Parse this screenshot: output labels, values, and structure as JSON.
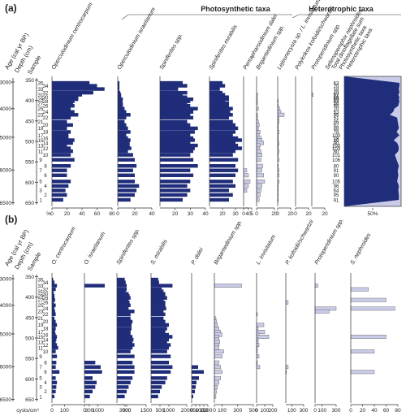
{
  "panels": {
    "a": {
      "label": "(a)"
    },
    "b": {
      "label": "(b)"
    }
  },
  "group_headers": {
    "photosynthetic": "Photosynthetic taxa",
    "heterotrophic": "Heterotrophic taxa"
  },
  "axis_headers": {
    "age": "Age (cal yr BP)",
    "depth": "Depth (cm)",
    "sample": "Sample"
  },
  "units": {
    "a": "%",
    "b": "cysts/cm³"
  },
  "colors": {
    "photosynthetic": "#1f2d7a",
    "heterotrophic": "#c9cbe8",
    "fill": "#1f2d7a",
    "outline": "#555555"
  },
  "age_ticks": [
    "3000",
    "4000",
    "5000",
    "6000",
    "6500"
  ],
  "age_depths": [
    355,
    420,
    490,
    570,
    650
  ],
  "depth_ticks": [
    "350",
    "400",
    "450",
    "500",
    "550",
    "600",
    "650"
  ],
  "chart_data": [
    {
      "type": "bar",
      "panel": "(a)",
      "orientation": "horizontal",
      "y_label": "Depth (cm)",
      "ylim": [
        345,
        655
      ],
      "depths": [
        357,
        364,
        372,
        381,
        386,
        392,
        397,
        402,
        407,
        413,
        420,
        428,
        435,
        442,
        452,
        460,
        468,
        477,
        485,
        492,
        497,
        504,
        510,
        517,
        524,
        533,
        545,
        560,
        571,
        583,
        598,
        609,
        620,
        631,
        643
      ],
      "samples": [
        "35",
        "34",
        "33",
        "32",
        "31",
        "30",
        "29",
        "28",
        "27",
        "26",
        "25",
        "24",
        "23",
        "22",
        "21",
        "20",
        "19",
        "18",
        "17",
        "16",
        "15",
        "14",
        "13",
        "12",
        "11",
        "10",
        "9",
        "8",
        "7",
        "6",
        "5",
        "4",
        "3",
        "2",
        "1"
      ],
      "series": [
        {
          "name": "Operculodinium centrocarpum",
          "group": "photosynthetic",
          "xlim": [
            0,
            80
          ],
          "ticks": [
            "0",
            "20",
            "40",
            "60",
            "80"
          ],
          "values": [
            50,
            60,
            70,
            55,
            40,
            35,
            35,
            30,
            28,
            30,
            25,
            30,
            35,
            25,
            20,
            28,
            20,
            25,
            22,
            22,
            30,
            28,
            20,
            25,
            28,
            25,
            30,
            25,
            20,
            20,
            25,
            22,
            18,
            20,
            15
          ]
        },
        {
          "name": "Operculodinium israelianum",
          "group": "photosynthetic",
          "xlim": [
            0,
            40
          ],
          "ticks": [
            "0",
            "20",
            "40"
          ],
          "values": [
            2,
            2,
            2,
            3,
            4,
            4,
            6,
            5,
            6,
            6,
            8,
            10,
            15,
            10,
            8,
            10,
            12,
            15,
            10,
            12,
            15,
            14,
            14,
            16,
            12,
            18,
            20,
            22,
            18,
            20,
            20,
            25,
            22,
            20,
            15
          ]
        },
        {
          "name": "Spiniferites spp.",
          "group": "photosynthetic",
          "xlim": [
            10,
            40
          ],
          "ticks": [
            "20",
            "30",
            "40"
          ],
          "values": [
            25,
            28,
            22,
            28,
            25,
            28,
            32,
            30,
            28,
            30,
            35,
            32,
            30,
            32,
            28,
            30,
            35,
            33,
            30,
            32,
            33,
            30,
            35,
            33,
            32,
            30,
            32,
            35,
            30,
            32,
            30,
            28,
            30,
            28,
            25
          ]
        },
        {
          "name": "Spiniferites mirabilis",
          "group": "photosynthetic",
          "xlim": [
            10,
            40
          ],
          "ticks": [
            "20",
            "30",
            "40"
          ],
          "values": [
            20,
            22,
            18,
            20,
            22,
            25,
            25,
            22,
            25,
            25,
            28,
            26,
            28,
            25,
            28,
            30,
            32,
            30,
            28,
            32,
            35,
            30,
            32,
            35,
            30,
            28,
            32,
            30,
            32,
            30,
            28,
            30,
            25,
            28,
            25
          ]
        },
        {
          "name": "Pentapharsodinium dalei",
          "group": "photosynthetic",
          "xlim": [
            0,
            5
          ],
          "ticks": [
            "0",
            "5"
          ],
          "values": [
            0,
            0,
            0,
            0,
            0,
            0,
            0,
            0,
            0,
            0,
            0,
            0,
            0,
            0,
            0,
            0,
            0,
            0,
            0,
            0,
            0,
            0,
            0,
            0,
            0,
            0,
            0,
            0,
            2,
            3,
            4,
            3,
            2,
            0,
            0
          ]
        },
        {
          "name": "Brigantedinium spp.",
          "group": "photosynthetic",
          "xlim": [
            0,
            20
          ],
          "ticks": [
            "0",
            "20"
          ],
          "values": [
            0,
            0,
            0,
            0,
            1,
            0,
            1,
            0,
            1,
            0,
            2,
            0,
            1,
            1,
            2,
            3,
            2,
            4,
            3,
            5,
            6,
            8,
            4,
            3,
            5,
            6,
            5,
            7,
            6,
            8,
            9,
            6,
            5,
            4,
            3
          ]
        },
        {
          "name": "Lejeunecysta sp. / L. invisitatum",
          "group": "photosynthetic",
          "xlim": [
            0,
            20
          ],
          "ticks": [
            "0",
            "20"
          ],
          "values": [
            0,
            0,
            0,
            0,
            0,
            0,
            0,
            1,
            0,
            1,
            3,
            5,
            10,
            2,
            2,
            1,
            1,
            2,
            1,
            1,
            1,
            2,
            1,
            1,
            2,
            1,
            2,
            1,
            2,
            2,
            2,
            1,
            1,
            1,
            1
          ]
        },
        {
          "name": "Polykrikos kofoidii/schwartzii",
          "group": "photosynthetic",
          "xlim": [
            0,
            20
          ],
          "ticks": [
            "0",
            "20"
          ],
          "values": [
            0,
            0,
            0,
            0,
            0,
            0,
            0,
            0,
            0,
            0,
            0,
            0,
            0,
            0,
            0,
            0,
            0,
            0,
            0,
            0,
            0,
            0,
            0,
            0,
            0,
            0,
            0,
            0,
            0,
            0,
            0,
            0,
            0,
            0,
            0
          ]
        },
        {
          "name": "Protoperidinium spp.",
          "group": "photosynthetic",
          "xlim": [
            0,
            20
          ],
          "ticks": [
            "20"
          ],
          "values": [
            0,
            0,
            0,
            0,
            2,
            0,
            0,
            0,
            0,
            0,
            0,
            0,
            0,
            0,
            0,
            0,
            0,
            0,
            0,
            0,
            0,
            0,
            0,
            0,
            0,
            0,
            0,
            0,
            0,
            0,
            0,
            0,
            0,
            0,
            0
          ]
        },
        {
          "name": "Selenopemphix nephroides",
          "group": "heterotrophic",
          "xlim": [
            0,
            20
          ],
          "ticks": [],
          "values": [
            0,
            0,
            0,
            0,
            0,
            0,
            0,
            0,
            0,
            0,
            0,
            0,
            0,
            0,
            0,
            0,
            0,
            0,
            0,
            0,
            0,
            0,
            0,
            0,
            0,
            0,
            0,
            0,
            0,
            0,
            0,
            0,
            0,
            0,
            0
          ]
        },
        {
          "name": "Total dinoflagellate sum",
          "group": "summary",
          "values": [
            63,
            70,
            58,
            49,
            62,
            66,
            69,
            93,
            56,
            50,
            10,
            63,
            95,
            51,
            86,
            62,
            88,
            78,
            100,
            78,
            80,
            90,
            100,
            103,
            80,
            101,
            106,
            80,
            91,
            90,
            105,
            96,
            64,
            95,
            91
          ]
        },
        {
          "name": "Photosynthetic taxa",
          "group": "summary",
          "xlim": [
            0,
            100
          ],
          "ticks": [
            "50%"
          ],
          "values": [
            97,
            97,
            96,
            97,
            95,
            97,
            96,
            97,
            96,
            95,
            88,
            86,
            80,
            93,
            94,
            95,
            96,
            92,
            97,
            91,
            87,
            93,
            95,
            96,
            95,
            89,
            92,
            96,
            94,
            95,
            93,
            96,
            95,
            96,
            96
          ]
        },
        {
          "name": "Heterotrophic taxa",
          "group": "summary"
        }
      ]
    },
    {
      "type": "bar",
      "panel": "(b)",
      "orientation": "horizontal",
      "y_label": "Depth (cm)",
      "ylim": [
        345,
        655
      ],
      "series": [
        {
          "name": "O. centrocarpum",
          "xlim": [
            0,
            300
          ],
          "ticks": [
            "0",
            "100",
            "300"
          ],
          "values": [
            10,
            20,
            40,
            30,
            10,
            15,
            20,
            20,
            25,
            15,
            30,
            20,
            25,
            30,
            20,
            30,
            40,
            30,
            25,
            30,
            40,
            35,
            30,
            40,
            50,
            30,
            40,
            35,
            30,
            60,
            30,
            40,
            35,
            30,
            20
          ]
        },
        {
          "name": "O. israelianum",
          "xlim": [
            0,
            3000
          ],
          "ticks": [
            "0",
            "1000",
            "3000"
          ],
          "values": [
            0,
            0,
            1500,
            0,
            0,
            0,
            0,
            0,
            0,
            0,
            0,
            0,
            0,
            0,
            0,
            0,
            0,
            0,
            0,
            0,
            0,
            0,
            0,
            0,
            0,
            0,
            0,
            800,
            1200,
            1300,
            600,
            900,
            800,
            600,
            400
          ]
        },
        {
          "name": "Spiniferites spp.",
          "xlim": [
            0,
            1500
          ],
          "ticks": [
            "500",
            "1500"
          ],
          "values": [
            400,
            450,
            500,
            500,
            450,
            600,
            650,
            700,
            600,
            650,
            700,
            600,
            900,
            700,
            700,
            800,
            750,
            750,
            700,
            700,
            800,
            850,
            800,
            900,
            800,
            700,
            900,
            800,
            900,
            900,
            800,
            700,
            600,
            500,
            400
          ]
        },
        {
          "name": "S. mirabilis",
          "xlim": [
            0,
            2000
          ],
          "ticks": [
            "500",
            "1000",
            "2000"
          ],
          "values": [
            400,
            450,
            1200,
            600,
            700,
            800,
            800,
            900,
            700,
            800,
            800,
            850,
            700,
            800,
            700,
            800,
            1000,
            900,
            800,
            1000,
            1200,
            1000,
            900,
            1100,
            1000,
            900,
            1100,
            1000,
            1200,
            1100,
            900,
            800,
            600,
            500,
            400
          ]
        },
        {
          "name": "P. dalei",
          "xlim": [
            0,
            200
          ],
          "ticks": [
            "0",
            "50",
            "100",
            "150",
            "200"
          ],
          "values": [
            0,
            0,
            0,
            0,
            0,
            0,
            0,
            0,
            0,
            0,
            0,
            0,
            0,
            0,
            0,
            0,
            0,
            0,
            0,
            0,
            0,
            0,
            0,
            0,
            0,
            0,
            0,
            0,
            80,
            150,
            90,
            60,
            50,
            40,
            20
          ]
        },
        {
          "name": "Brigantedinium spp.",
          "xlim": [
            0,
            500
          ],
          "ticks": [
            "0",
            "100",
            "300",
            "500"
          ],
          "values": [
            0,
            0,
            350,
            0,
            0,
            0,
            0,
            0,
            0,
            0,
            0,
            0,
            0,
            0,
            20,
            30,
            40,
            60,
            80,
            100,
            60,
            60,
            70,
            60,
            60,
            120,
            100,
            60,
            80,
            100,
            80,
            60,
            40,
            30,
            20
          ]
        },
        {
          "name": "L. invisitatum",
          "xlim": [
            0,
            200
          ],
          "ticks": [
            "0",
            "100",
            "200"
          ],
          "values": [
            0,
            0,
            0,
            0,
            0,
            0,
            0,
            0,
            0,
            0,
            0,
            0,
            0,
            10,
            0,
            0,
            90,
            20,
            100,
            30,
            150,
            20,
            20,
            30,
            10,
            10,
            30,
            10,
            40,
            0,
            0,
            0,
            0,
            0,
            0
          ]
        },
        {
          "name": "P. kofoidii/schwartzii",
          "xlim": [
            0,
            300
          ],
          "ticks": [
            "100",
            "300"
          ],
          "values": [
            0,
            0,
            0,
            0,
            0,
            0,
            0,
            0,
            0,
            40,
            0,
            0,
            0,
            0,
            0,
            0,
            0,
            0,
            0,
            0,
            0,
            0,
            0,
            0,
            0,
            0,
            0,
            0,
            40,
            10,
            0,
            0,
            0,
            0,
            0
          ]
        },
        {
          "name": "Protoperidinium spp.",
          "xlim": [
            0,
            300
          ],
          "ticks": [
            "0",
            "100",
            "300"
          ],
          "values": [
            0,
            0,
            40,
            0,
            0,
            0,
            0,
            0,
            0,
            0,
            0,
            300,
            200,
            0,
            0,
            0,
            0,
            0,
            0,
            0,
            0,
            0,
            0,
            0,
            0,
            0,
            0,
            0,
            0,
            0,
            0,
            0,
            0,
            0,
            0
          ]
        },
        {
          "name": "S. nephroides",
          "xlim": [
            0,
            80
          ],
          "ticks": [
            "0",
            "20",
            "40",
            "60",
            "80"
          ],
          "values": [
            0,
            0,
            0,
            30,
            0,
            0,
            0,
            0,
            60,
            0,
            0,
            75,
            0,
            0,
            0,
            0,
            0,
            0,
            0,
            0,
            60,
            0,
            0,
            0,
            0,
            40,
            0,
            0,
            0,
            40,
            0,
            0,
            0,
            0,
            0
          ]
        }
      ]
    }
  ]
}
